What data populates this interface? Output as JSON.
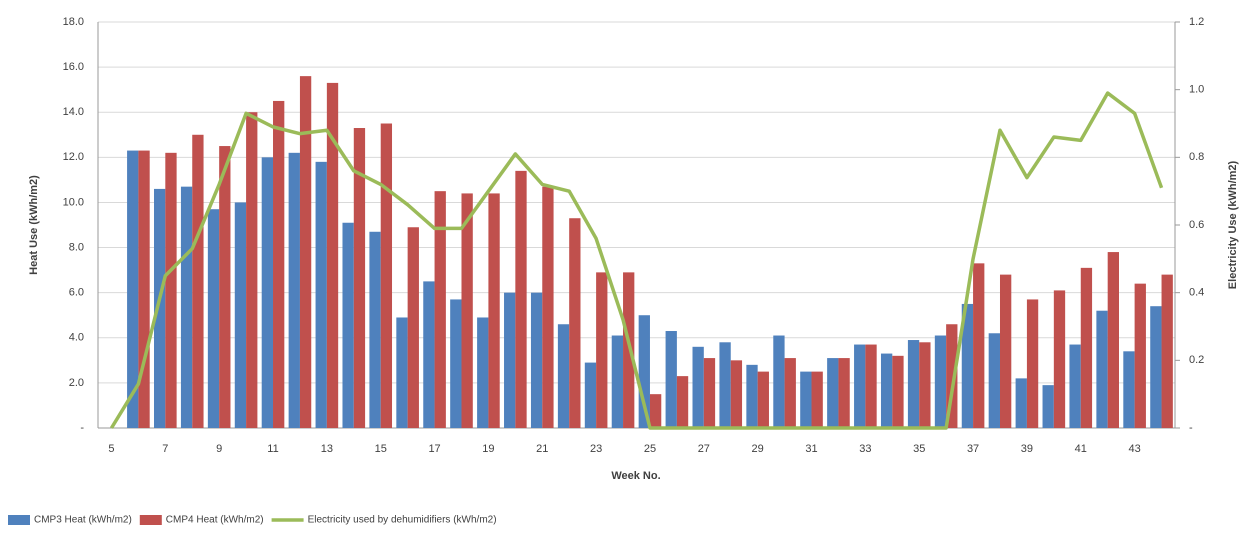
{
  "chart_data": {
    "type": "bar",
    "x_label": "Week No.",
    "y_label": "Heat Use (kWh/m2)",
    "y2_label": "Electricity Use (kWh/m2)",
    "categories": [
      5,
      null,
      7,
      null,
      9,
      null,
      11,
      null,
      13,
      null,
      15,
      null,
      17,
      null,
      19,
      null,
      21,
      null,
      23,
      null,
      25,
      null,
      27,
      null,
      29,
      null,
      31,
      null,
      33,
      null,
      35,
      null,
      37,
      null,
      39,
      null,
      41,
      null,
      43,
      null
    ],
    "series": [
      {
        "name": "CMP3 Heat (kWh/m2)",
        "type": "bar",
        "color": "#4f81bd",
        "values": [
          null,
          12.3,
          10.6,
          10.7,
          9.7,
          10.0,
          12.0,
          12.2,
          11.8,
          9.1,
          8.7,
          4.9,
          6.5,
          5.7,
          4.9,
          6.0,
          6.0,
          4.6,
          2.9,
          4.1,
          5.0,
          4.3,
          3.6,
          3.8,
          2.8,
          4.1,
          2.5,
          3.1,
          3.7,
          3.3,
          3.9,
          4.1,
          5.5,
          4.2,
          2.2,
          1.9,
          3.7,
          5.2,
          3.4,
          5.4
        ]
      },
      {
        "name": "CMP4 Heat (kWh/m2)",
        "type": "bar",
        "color": "#c0504d",
        "values": [
          null,
          12.3,
          12.2,
          13.0,
          12.5,
          14.0,
          14.5,
          15.6,
          15.3,
          13.3,
          13.5,
          8.9,
          10.5,
          10.4,
          10.4,
          11.4,
          10.7,
          9.3,
          6.9,
          6.9,
          1.5,
          2.3,
          3.1,
          3.0,
          2.5,
          3.1,
          2.5,
          3.1,
          3.7,
          3.2,
          3.8,
          4.6,
          7.3,
          6.8,
          5.7,
          6.1,
          7.1,
          7.8,
          6.4,
          6.8
        ]
      },
      {
        "name": "Electricity used by dehumidifiers (kWh/m2)",
        "type": "line",
        "axis": "y2",
        "color": "#9bbb59",
        "values": [
          0,
          0.13,
          0.45,
          0.53,
          0.72,
          0.93,
          0.89,
          0.87,
          0.88,
          0.76,
          0.72,
          0.66,
          0.59,
          0.59,
          0.7,
          0.81,
          0.72,
          0.7,
          0.56,
          0.32,
          0,
          0,
          0,
          0,
          0,
          0,
          0,
          0,
          0,
          0,
          0,
          0,
          0.5,
          0.88,
          0.74,
          0.86,
          0.85,
          0.99,
          0.93,
          0.71
        ]
      }
    ],
    "ylim": [
      0,
      18
    ],
    "yticks": [
      {
        "value": 0,
        "label": "-"
      },
      {
        "value": 2,
        "label": "2.0"
      },
      {
        "value": 4,
        "label": "4.0"
      },
      {
        "value": 6,
        "label": "6.0"
      },
      {
        "value": 8,
        "label": "8.0"
      },
      {
        "value": 10,
        "label": "10.0"
      },
      {
        "value": 12,
        "label": "12.0"
      },
      {
        "value": 14,
        "label": "14.0"
      },
      {
        "value": 16,
        "label": "16.0"
      },
      {
        "value": 18,
        "label": "18.0"
      }
    ],
    "y2lim": [
      0,
      1.2
    ],
    "y2ticks": [
      {
        "value": 0,
        "label": "-"
      },
      0.2,
      0.4,
      0.6,
      0.8,
      {
        "value": 1,
        "label": "1.0"
      },
      1.2
    ],
    "grid": true,
    "legend": "bottom-left"
  }
}
